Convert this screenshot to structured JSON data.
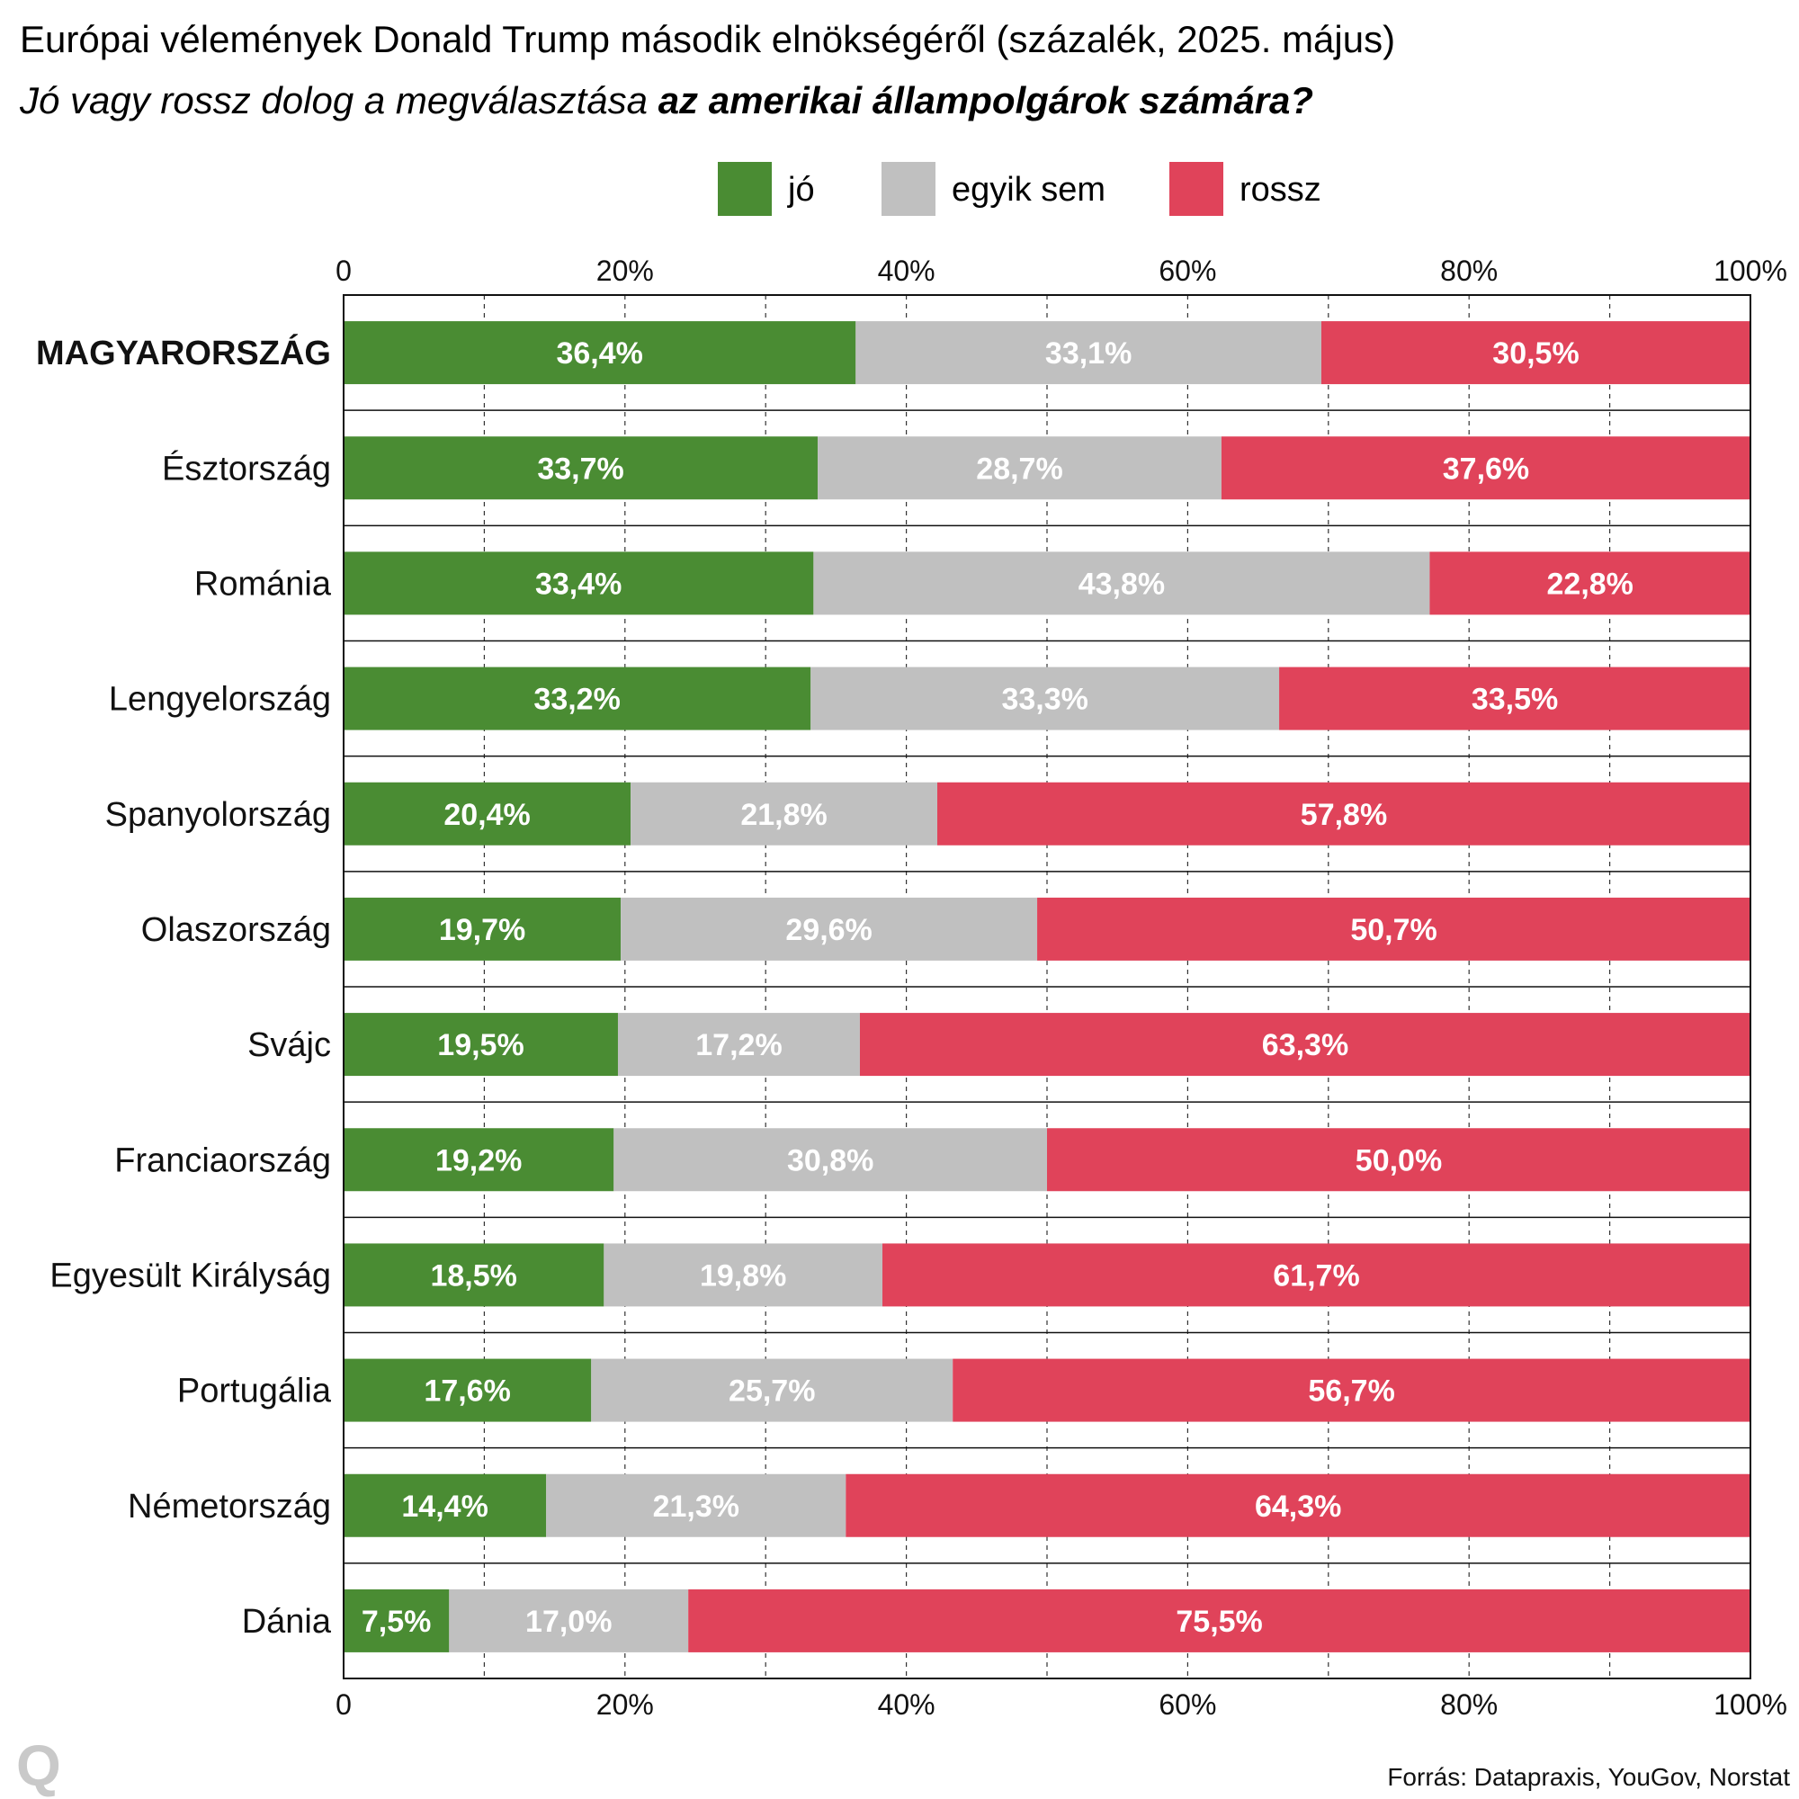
{
  "title": "Európai vélemények Donald Trump második elnökségéről (százalék, 2025. május)",
  "subtitle_italic": "Jó vagy rossz dolog a megválasztása ",
  "subtitle_bold": "az amerikai állampolgárok számára?",
  "source": "Forrás: Datapraxis, YouGov, Norstat",
  "logo": "Q",
  "colors": {
    "jo": "#4a8c33",
    "egyik_sem": "#c0c0c0",
    "rossz": "#e0435a"
  },
  "chart_data": {
    "type": "bar",
    "orientation": "horizontal",
    "stacked": true,
    "xlim": [
      0,
      100
    ],
    "x_ticks": [
      "0",
      "20%",
      "40%",
      "60%",
      "80%",
      "100%"
    ],
    "grid": true,
    "legend_position": "top",
    "categories": [
      "MAGYARORSZÁG",
      "Észtország",
      "Románia",
      "Lengyelország",
      "Spanyolország",
      "Olaszország",
      "Svájc",
      "Franciaország",
      "Egyesült Királyság",
      "Portugália",
      "Németország",
      "Dánia"
    ],
    "series": [
      {
        "name": "jó",
        "color": "#4a8c33",
        "values": [
          36.4,
          33.7,
          33.4,
          33.2,
          20.4,
          19.7,
          19.5,
          19.2,
          18.5,
          17.6,
          14.4,
          7.5
        ],
        "labels": [
          "36,4%",
          "33,7%",
          "33,4%",
          "33,2%",
          "20,4%",
          "19,7%",
          "19,5%",
          "19,2%",
          "18,5%",
          "17,6%",
          "14,4%",
          "7,5%"
        ]
      },
      {
        "name": "egyik sem",
        "color": "#c0c0c0",
        "values": [
          33.1,
          28.7,
          43.8,
          33.3,
          21.8,
          29.6,
          17.2,
          30.8,
          19.8,
          25.7,
          21.3,
          17.0
        ],
        "labels": [
          "33,1%",
          "28,7%",
          "43,8%",
          "33,3%",
          "21,8%",
          "29,6%",
          "17,2%",
          "30,8%",
          "19,8%",
          "25,7%",
          "21,3%",
          "17,0%"
        ]
      },
      {
        "name": "rossz",
        "color": "#e0435a",
        "values": [
          30.5,
          37.6,
          22.8,
          33.5,
          57.8,
          50.7,
          63.3,
          50.0,
          61.7,
          56.7,
          64.3,
          75.5
        ],
        "labels": [
          "30,5%",
          "37,6%",
          "22,8%",
          "33,5%",
          "57,8%",
          "50,7%",
          "63,3%",
          "50,0%",
          "61,7%",
          "56,7%",
          "64,3%",
          "75,5%"
        ]
      }
    ]
  }
}
